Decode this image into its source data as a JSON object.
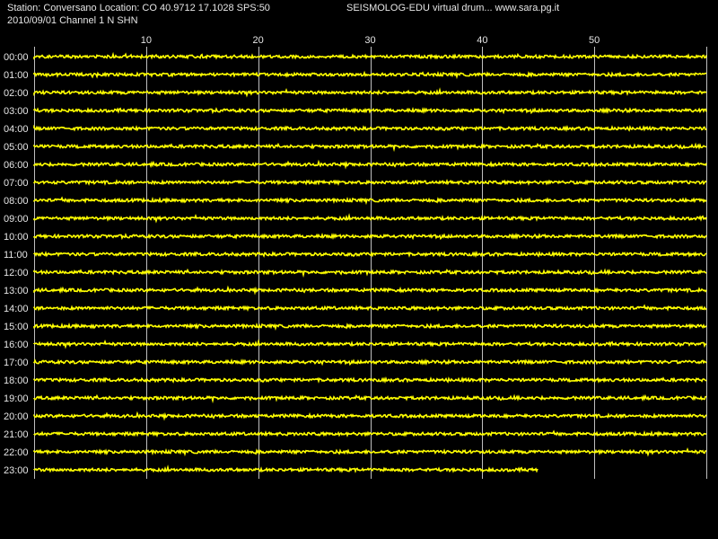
{
  "header": {
    "station_line": "Station: Conversano Location: CO 40.9712 17.1028 SPS:50",
    "date_channel_line": "2010/09/01  Channel 1 N SHN",
    "app_credit": "SEISMOLOG-EDU virtual drum... www.sara.pg.it"
  },
  "chart_data": {
    "type": "line",
    "x_ticks": [
      "10",
      "20",
      "30",
      "40",
      "50"
    ],
    "x_tick_values": [
      10,
      20,
      30,
      40,
      50
    ],
    "xlim": [
      0,
      60
    ],
    "hour_labels": [
      "00:00",
      "01:00",
      "02:00",
      "03:00",
      "04:00",
      "05:00",
      "06:00",
      "07:00",
      "08:00",
      "09:00",
      "10:00",
      "11:00",
      "12:00",
      "13:00",
      "14:00",
      "15:00",
      "16:00",
      "17:00",
      "18:00",
      "19:00",
      "20:00",
      "21:00",
      "22:00",
      "23:00"
    ],
    "last_trace_end_minute": 45,
    "grid": true,
    "colors": {
      "trace": "#ffff00",
      "background": "#000000",
      "grid": "#bfbfbf",
      "text": "#e6e6e6"
    }
  }
}
